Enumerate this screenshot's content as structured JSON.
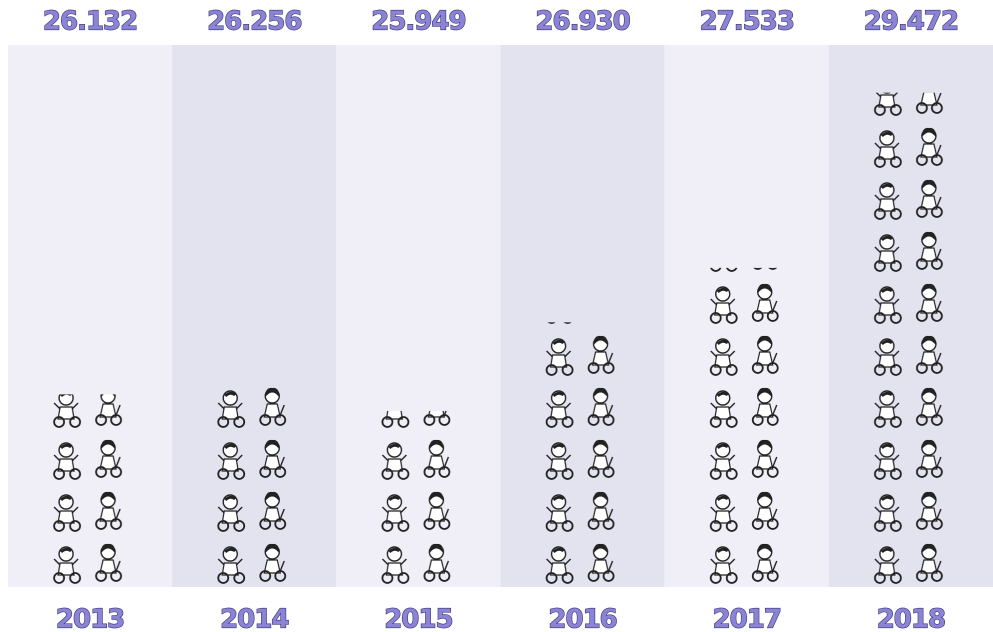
{
  "chart_data": {
    "type": "pictogram",
    "categories": [
      "2013",
      "2014",
      "2015",
      "2016",
      "2017",
      "2018"
    ],
    "values": [
      26132,
      26256,
      25949,
      26930,
      27533,
      29472
    ],
    "value_labels": [
      "26.132",
      "26.256",
      "25.949",
      "26.930",
      "27.533",
      "29.472"
    ],
    "ylim": [
      24000,
      30000
    ],
    "color": "#8a83d6",
    "column_colors": [
      "#f0eff7",
      "#e3e2ef"
    ]
  }
}
